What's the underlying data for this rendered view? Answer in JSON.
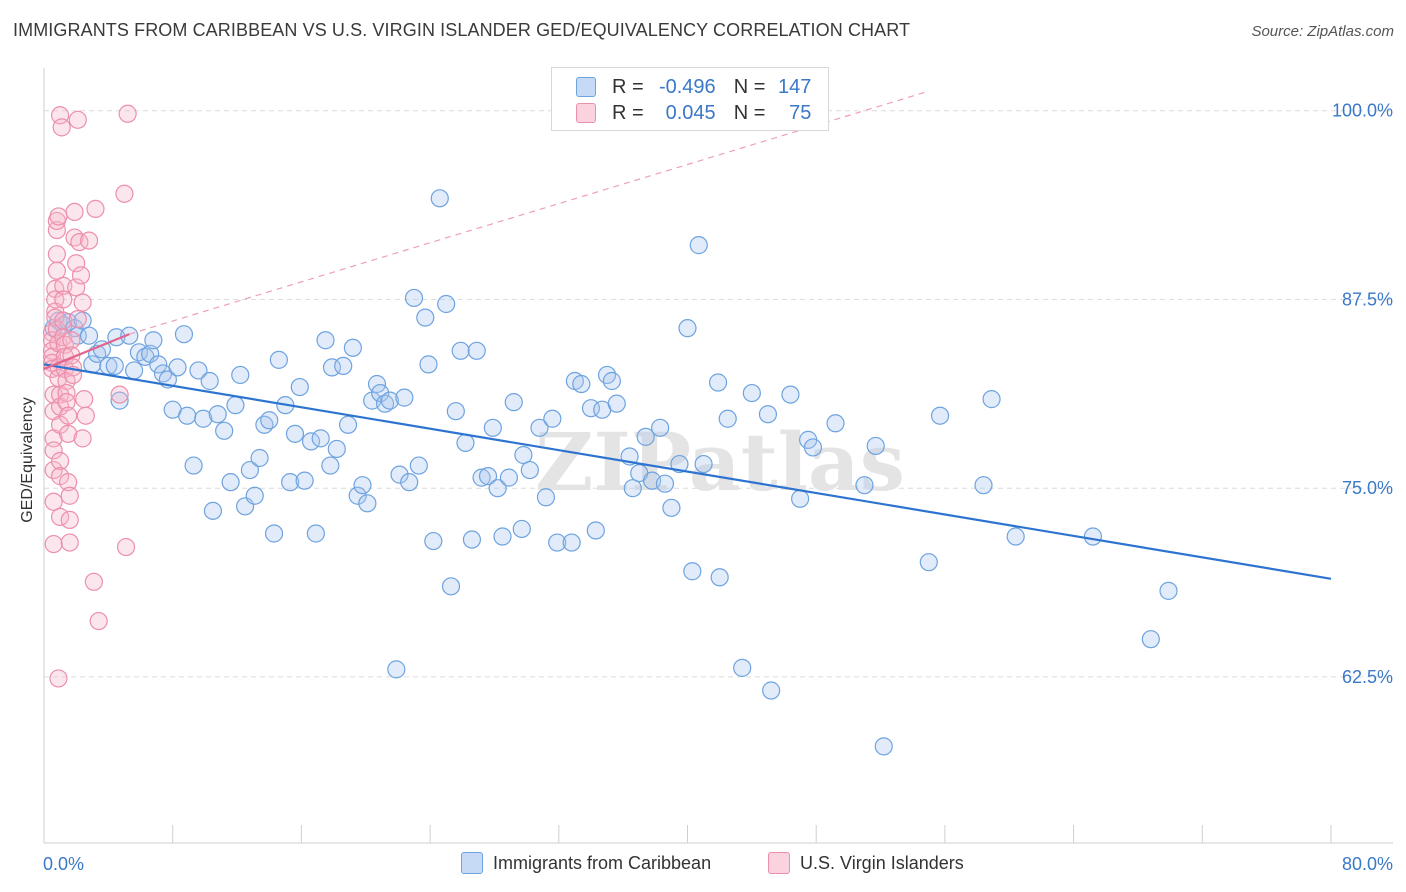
{
  "title": "IMMIGRANTS FROM CARIBBEAN VS U.S. VIRGIN ISLANDER GED/EQUIVALENCY CORRELATION CHART",
  "source": "Source: ZipAtlas.com",
  "watermark": "ZIPatlas",
  "legend": {
    "rows": [
      {
        "r_label": "R =",
        "r_value": "-0.496",
        "n_label": "N =",
        "n_value": "147",
        "color": "#a9c6ee"
      },
      {
        "r_label": "R =",
        "r_value": "0.045",
        "n_label": "N =",
        "n_value": "75",
        "color": "#f5b8cb"
      }
    ]
  },
  "bottom_legend": [
    {
      "label": "Immigrants from Caribbean",
      "color": "#a9c6ee"
    },
    {
      "label": "U.S. Virgin Islanders",
      "color": "#f5b8cb"
    }
  ],
  "chart_data": {
    "type": "scatter",
    "title": "IMMIGRANTS FROM CARIBBEAN VS U.S. VIRGIN ISLANDER GED/EQUIVALENCY CORRELATION CHART",
    "xlabel": "",
    "ylabel": "GED/Equivalency",
    "xlim": [
      0,
      80
    ],
    "ylim": [
      51.5,
      102.5
    ],
    "x_tick_labels": {
      "left": "0.0%",
      "right": "80.0%"
    },
    "y_ticks": [
      62.5,
      75.0,
      87.5,
      100.0
    ],
    "y_tick_labels": [
      "62.5%",
      "75.0%",
      "87.5%",
      "100.0%"
    ],
    "grid": true,
    "series": [
      {
        "name": "Immigrants from Caribbean",
        "color": "#6ea3e0",
        "fill": "rgba(169,198,238,0.35)",
        "trend": {
          "x0": 0,
          "y0": 83.2,
          "x1": 80,
          "y1": 69.0,
          "color": "#2d74d0",
          "dashed": false
        },
        "points": [
          [
            0.6,
            85.6
          ],
          [
            0.9,
            86.1
          ],
          [
            1.2,
            85.8
          ],
          [
            1.5,
            86.0
          ],
          [
            1.9,
            85.6
          ],
          [
            2.1,
            85.1
          ],
          [
            2.4,
            86.1
          ],
          [
            2.8,
            85.1
          ],
          [
            3.0,
            83.2
          ],
          [
            3.3,
            83.9
          ],
          [
            3.6,
            84.2
          ],
          [
            4.0,
            83.1
          ],
          [
            4.4,
            83.1
          ],
          [
            4.7,
            80.8
          ],
          [
            4.5,
            85.0
          ],
          [
            5.3,
            85.1
          ],
          [
            5.6,
            82.8
          ],
          [
            5.9,
            84.0
          ],
          [
            6.3,
            83.7
          ],
          [
            6.6,
            83.9
          ],
          [
            6.8,
            84.8
          ],
          [
            7.1,
            83.2
          ],
          [
            7.4,
            82.6
          ],
          [
            7.7,
            82.2
          ],
          [
            8.0,
            80.2
          ],
          [
            8.3,
            83.0
          ],
          [
            8.7,
            85.2
          ],
          [
            8.9,
            79.8
          ],
          [
            9.3,
            76.5
          ],
          [
            9.6,
            82.8
          ],
          [
            9.9,
            79.6
          ],
          [
            10.3,
            82.1
          ],
          [
            10.5,
            73.5
          ],
          [
            10.8,
            79.9
          ],
          [
            11.2,
            78.8
          ],
          [
            11.6,
            75.4
          ],
          [
            11.9,
            80.5
          ],
          [
            12.2,
            82.5
          ],
          [
            12.5,
            73.8
          ],
          [
            12.8,
            76.2
          ],
          [
            13.1,
            74.5
          ],
          [
            13.4,
            77.0
          ],
          [
            13.7,
            79.2
          ],
          [
            14.0,
            79.5
          ],
          [
            14.3,
            72.0
          ],
          [
            14.6,
            83.5
          ],
          [
            15.0,
            80.5
          ],
          [
            15.3,
            75.4
          ],
          [
            15.6,
            78.6
          ],
          [
            15.9,
            81.7
          ],
          [
            16.2,
            75.5
          ],
          [
            16.6,
            78.1
          ],
          [
            16.9,
            72.0
          ],
          [
            17.2,
            78.3
          ],
          [
            17.5,
            84.8
          ],
          [
            17.8,
            76.5
          ],
          [
            17.9,
            83.0
          ],
          [
            18.2,
            77.6
          ],
          [
            18.6,
            83.1
          ],
          [
            18.9,
            79.2
          ],
          [
            19.2,
            84.3
          ],
          [
            19.5,
            74.5
          ],
          [
            19.8,
            75.2
          ],
          [
            20.1,
            74.0
          ],
          [
            20.4,
            80.8
          ],
          [
            20.7,
            81.9
          ],
          [
            20.9,
            81.3
          ],
          [
            21.2,
            80.6
          ],
          [
            21.5,
            80.8
          ],
          [
            21.9,
            63.0
          ],
          [
            22.1,
            75.9
          ],
          [
            22.4,
            81.0
          ],
          [
            22.7,
            75.4
          ],
          [
            23.0,
            87.6
          ],
          [
            23.3,
            76.5
          ],
          [
            23.7,
            86.3
          ],
          [
            23.9,
            83.2
          ],
          [
            24.2,
            71.5
          ],
          [
            24.6,
            94.2
          ],
          [
            25.0,
            87.2
          ],
          [
            25.3,
            68.5
          ],
          [
            25.6,
            80.1
          ],
          [
            25.9,
            84.1
          ],
          [
            26.2,
            78.0
          ],
          [
            26.6,
            71.6
          ],
          [
            26.9,
            84.1
          ],
          [
            27.2,
            75.7
          ],
          [
            27.6,
            75.8
          ],
          [
            27.9,
            79.0
          ],
          [
            28.2,
            75.0
          ],
          [
            28.5,
            71.8
          ],
          [
            28.9,
            75.7
          ],
          [
            29.2,
            80.7
          ],
          [
            29.7,
            72.3
          ],
          [
            29.8,
            77.2
          ],
          [
            30.2,
            76.2
          ],
          [
            30.8,
            79.0
          ],
          [
            31.2,
            74.4
          ],
          [
            31.6,
            79.6
          ],
          [
            31.9,
            71.4
          ],
          [
            32.8,
            71.4
          ],
          [
            33.0,
            82.1
          ],
          [
            33.4,
            81.9
          ],
          [
            34.0,
            80.3
          ],
          [
            34.3,
            72.2
          ],
          [
            34.7,
            80.2
          ],
          [
            35.0,
            82.5
          ],
          [
            35.3,
            82.1
          ],
          [
            35.6,
            80.6
          ],
          [
            36.4,
            77.1
          ],
          [
            36.6,
            75.0
          ],
          [
            37.0,
            76.0
          ],
          [
            37.4,
            78.4
          ],
          [
            37.8,
            75.5
          ],
          [
            38.3,
            79.0
          ],
          [
            38.6,
            75.3
          ],
          [
            39.0,
            73.7
          ],
          [
            39.5,
            76.6
          ],
          [
            40.0,
            85.6
          ],
          [
            40.3,
            69.5
          ],
          [
            40.7,
            91.1
          ],
          [
            41.0,
            76.6
          ],
          [
            41.9,
            82.0
          ],
          [
            42.0,
            69.1
          ],
          [
            42.5,
            79.6
          ],
          [
            43.4,
            63.1
          ],
          [
            44.0,
            81.3
          ],
          [
            45.0,
            79.9
          ],
          [
            45.2,
            61.6
          ],
          [
            46.4,
            81.2
          ],
          [
            47.0,
            74.3
          ],
          [
            47.5,
            78.2
          ],
          [
            47.8,
            77.7
          ],
          [
            49.2,
            79.3
          ],
          [
            51.0,
            75.2
          ],
          [
            51.7,
            77.8
          ],
          [
            55.0,
            70.1
          ],
          [
            55.7,
            79.8
          ],
          [
            58.4,
            75.2
          ],
          [
            58.9,
            80.9
          ],
          [
            60.4,
            71.8
          ],
          [
            65.2,
            71.8
          ],
          [
            68.8,
            65.0
          ],
          [
            69.9,
            68.2
          ],
          [
            52.2,
            57.9
          ]
        ]
      },
      {
        "name": "U.S. Virgin Islanders",
        "color": "#ec8fab",
        "fill": "rgba(245,184,203,0.35)",
        "trend": {
          "x0": 0,
          "y0": 82.9,
          "x1": 5.3,
          "y1": 85.2,
          "color": "#e0668f",
          "dashed": false
        },
        "trend_extension": {
          "x0": 5.3,
          "y0": 85.2,
          "x1": 55.0,
          "y1": 101.3,
          "color": "#eca0b8",
          "dashed": true
        },
        "points": [
          [
            0.5,
            85.3
          ],
          [
            0.5,
            84.8
          ],
          [
            0.5,
            84.1
          ],
          [
            0.5,
            83.7
          ],
          [
            0.5,
            83.3
          ],
          [
            0.5,
            82.9
          ],
          [
            0.6,
            81.2
          ],
          [
            0.6,
            80.1
          ],
          [
            0.6,
            78.3
          ],
          [
            0.6,
            77.5
          ],
          [
            0.6,
            76.2
          ],
          [
            0.6,
            74.1
          ],
          [
            0.6,
            71.3
          ],
          [
            0.7,
            88.2
          ],
          [
            0.7,
            87.5
          ],
          [
            0.7,
            86.7
          ],
          [
            0.7,
            86.3
          ],
          [
            0.8,
            90.5
          ],
          [
            0.8,
            92.1
          ],
          [
            0.8,
            92.7
          ],
          [
            0.8,
            89.4
          ],
          [
            0.8,
            85.5
          ],
          [
            0.9,
            84.6
          ],
          [
            0.9,
            83.0
          ],
          [
            0.9,
            82.3
          ],
          [
            1.0,
            81.2
          ],
          [
            1.0,
            80.4
          ],
          [
            1.0,
            79.2
          ],
          [
            1.0,
            76.8
          ],
          [
            1.0,
            75.8
          ],
          [
            1.0,
            73.1
          ],
          [
            0.9,
            62.4
          ],
          [
            1.0,
            99.7
          ],
          [
            1.1,
            98.9
          ],
          [
            1.2,
            88.4
          ],
          [
            1.2,
            87.5
          ],
          [
            1.2,
            86.1
          ],
          [
            1.2,
            85.0
          ],
          [
            1.3,
            84.5
          ],
          [
            1.3,
            83.7
          ],
          [
            1.3,
            82.9
          ],
          [
            1.4,
            82.1
          ],
          [
            1.4,
            81.3
          ],
          [
            1.4,
            80.7
          ],
          [
            1.5,
            79.8
          ],
          [
            1.5,
            78.6
          ],
          [
            1.5,
            75.4
          ],
          [
            1.6,
            74.5
          ],
          [
            1.6,
            72.9
          ],
          [
            1.6,
            71.4
          ],
          [
            1.7,
            84.8
          ],
          [
            1.7,
            83.8
          ],
          [
            1.8,
            83.0
          ],
          [
            1.8,
            82.5
          ],
          [
            1.9,
            93.3
          ],
          [
            1.9,
            91.6
          ],
          [
            2.0,
            89.9
          ],
          [
            2.0,
            88.3
          ],
          [
            2.1,
            99.4
          ],
          [
            2.1,
            86.2
          ],
          [
            2.2,
            91.3
          ],
          [
            2.3,
            89.1
          ],
          [
            2.4,
            87.3
          ],
          [
            2.4,
            78.3
          ],
          [
            2.5,
            80.9
          ],
          [
            2.6,
            79.8
          ],
          [
            2.8,
            91.4
          ],
          [
            3.1,
            68.8
          ],
          [
            3.2,
            93.5
          ],
          [
            3.4,
            66.2
          ],
          [
            4.7,
            81.2
          ],
          [
            5.0,
            94.5
          ],
          [
            5.1,
            71.1
          ],
          [
            5.2,
            99.8
          ],
          [
            0.9,
            93.0
          ]
        ]
      }
    ]
  }
}
